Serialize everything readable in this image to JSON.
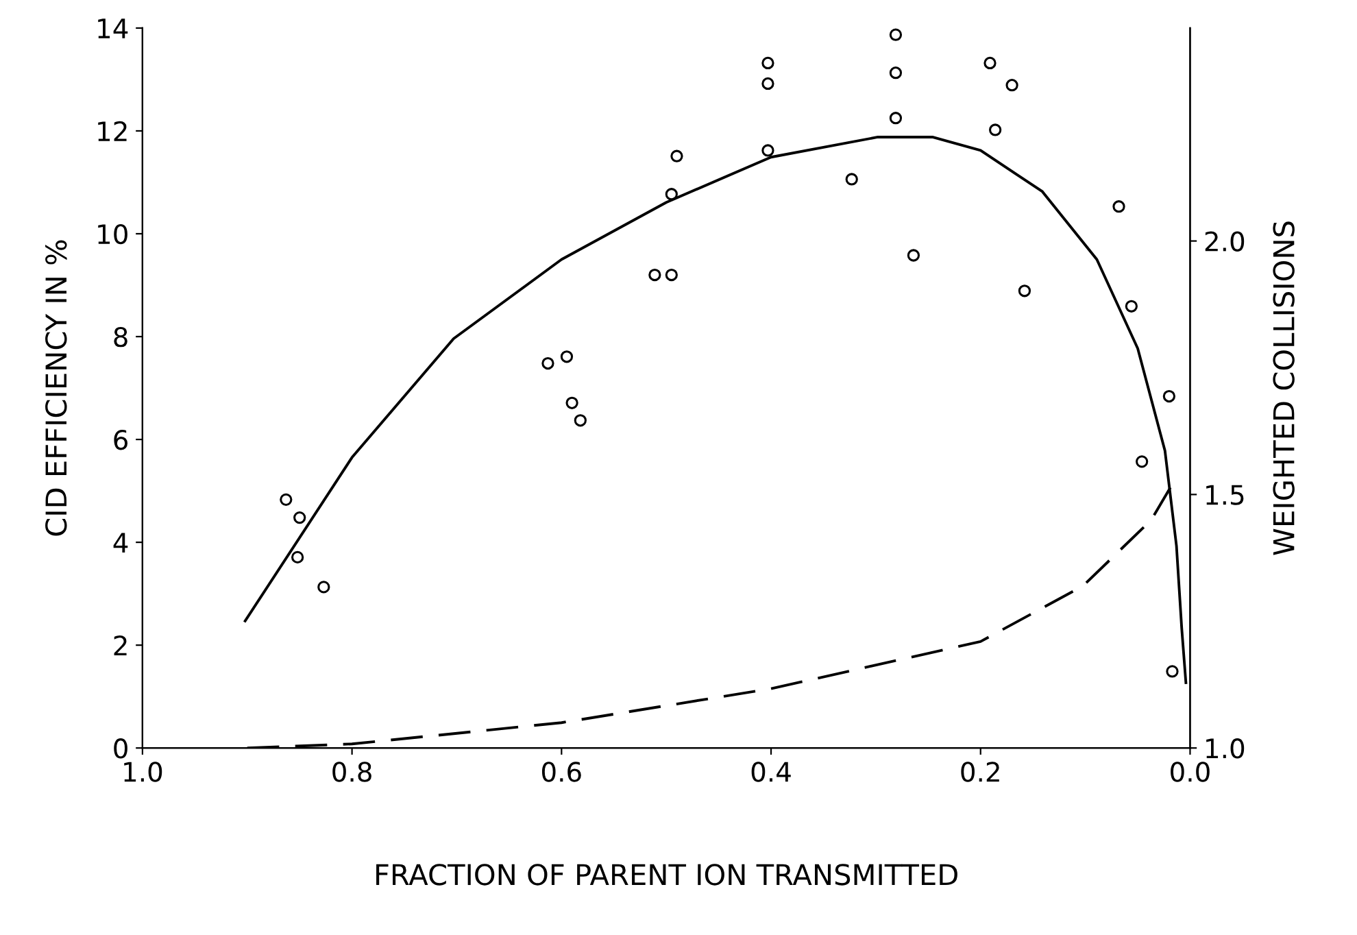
{
  "chart_data": {
    "type": "scatter",
    "xlabel": "FRACTION OF PARENT ION TRANSMITTED",
    "ylabel": "CID EFFICIENCY IN %",
    "y2label": "WEIGHTED COLLISIONS",
    "xlim": [
      1.0,
      0.0
    ],
    "xticks": [
      {
        "value": 1.0,
        "label": "1.0"
      },
      {
        "value": 0.8,
        "label": "0.8"
      },
      {
        "value": 0.6,
        "label": "0.6"
      },
      {
        "value": 0.4,
        "label": "0.4"
      },
      {
        "value": 0.2,
        "label": "0.2"
      },
      {
        "value": 0.0,
        "label": "0.0"
      }
    ],
    "ylim": [
      0,
      14
    ],
    "yticks": [
      0,
      2,
      4,
      6,
      8,
      10,
      12,
      14
    ],
    "y2lim": [
      1.0,
      2.42
    ],
    "y2ticks": [
      {
        "value": 1.0,
        "label": "1.0"
      },
      {
        "value": 1.5,
        "label": "1.5"
      },
      {
        "value": 2.0,
        "label": "2.0"
      }
    ],
    "grid": false,
    "series": [
      {
        "marker": "circle",
        "color": "#000000",
        "x": [
          0.863,
          0.85,
          0.852,
          0.827,
          0.613,
          0.595,
          0.59,
          0.582,
          0.495,
          0.49,
          0.511,
          0.495,
          0.403,
          0.403,
          0.403,
          0.323,
          0.281,
          0.281,
          0.281,
          0.264,
          0.191,
          0.17,
          0.186,
          0.158,
          0.068,
          0.056,
          0.046,
          0.02,
          0.017
        ],
        "values": [
          4.83,
          4.48,
          3.71,
          3.13,
          7.48,
          7.61,
          6.71,
          6.37,
          10.77,
          11.51,
          9.2,
          9.2,
          13.32,
          12.92,
          11.62,
          11.06,
          13.87,
          13.13,
          12.25,
          9.58,
          13.32,
          12.89,
          12.02,
          8.89,
          10.53,
          8.59,
          5.57,
          6.84,
          1.49
        ]
      },
      {
        "type": "line",
        "line_style": "solid",
        "marker": "none",
        "color": "#000000",
        "x": [
          0.902,
          0.8,
          0.703,
          0.6,
          0.5,
          0.4,
          0.298,
          0.246,
          0.2,
          0.141,
          0.089,
          0.05,
          0.024,
          0.013,
          0.008,
          0.004
        ],
        "values": [
          2.47,
          5.65,
          7.96,
          9.5,
          10.61,
          11.49,
          11.88,
          11.88,
          11.62,
          10.82,
          9.5,
          7.77,
          5.78,
          3.93,
          2.33,
          1.27
        ]
      },
      {
        "type": "line",
        "axis": "y2",
        "line_style": "dashed",
        "marker": "none",
        "color": "#000000",
        "x": [
          0.9,
          0.8,
          0.6,
          0.4,
          0.2,
          0.102,
          0.037,
          0.017
        ],
        "values": [
          1.0,
          1.008,
          1.05,
          1.117,
          1.21,
          1.32,
          1.45,
          1.52
        ]
      }
    ]
  }
}
